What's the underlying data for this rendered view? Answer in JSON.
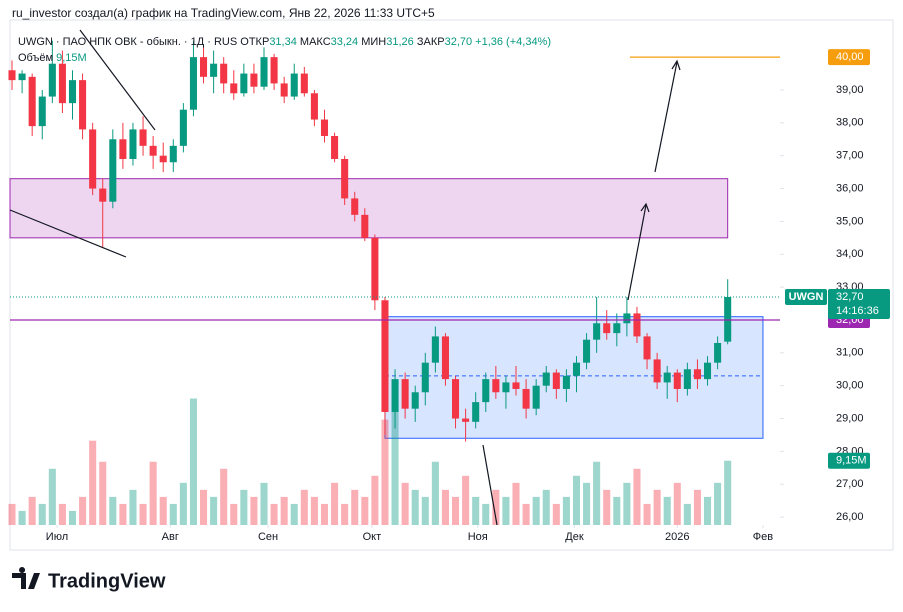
{
  "header": {
    "caption": "ru_investor создал(а) график на TradingView.com, Янв 22, 2026 11:33 UTC+5"
  },
  "legend": {
    "symbol": "UWGN · ПАО НПК ОВК - обыкн. · 1Д · RUS",
    "open_label": "ОТКР",
    "open": "31,34",
    "high_label": "МАКС",
    "high": "33,24",
    "low_label": "МИН",
    "low": "31,26",
    "close_label": "ЗАКР",
    "close": "32,70",
    "change": "+1,36 (+4,34%)",
    "volume_label": "Объём",
    "volume": "9,15M"
  },
  "footer": {
    "brand": "TradingView"
  },
  "chart_data": {
    "type": "candlestick",
    "name": "UWGN",
    "up_color": "#089981",
    "down_color": "#f23645",
    "ylim": [
      25.76,
      41.13
    ],
    "yticks": [
      {
        "value": 26,
        "label": "26,00"
      },
      {
        "value": 27,
        "label": "27,00"
      },
      {
        "value": 28,
        "label": "28,00"
      },
      {
        "value": 29,
        "label": "29,00"
      },
      {
        "value": 30,
        "label": "30,00"
      },
      {
        "value": 31,
        "label": "31,00"
      },
      {
        "value": 33,
        "label": "33,00"
      },
      {
        "value": 34,
        "label": "34,00"
      },
      {
        "value": 35,
        "label": "35,00"
      },
      {
        "value": 36,
        "label": "36,00"
      },
      {
        "value": 37,
        "label": "37,00"
      },
      {
        "value": 38,
        "label": "38,00"
      },
      {
        "value": 39,
        "label": "39,00"
      }
    ],
    "xlim": [
      -0.2,
      76.19
    ],
    "xticks": [
      {
        "value": 4.46,
        "label": "Июл"
      },
      {
        "value": 15.7,
        "label": "Авг"
      },
      {
        "value": 25.4,
        "label": "Сен"
      },
      {
        "value": 35.7,
        "label": "Окт"
      },
      {
        "value": 46.2,
        "label": "Ноя"
      },
      {
        "value": 55.8,
        "label": "Дек"
      },
      {
        "value": 66.0,
        "label": "2026"
      },
      {
        "value": 74.5,
        "label": "Фев"
      }
    ],
    "grid": false,
    "candles": [
      [
        39.6,
        39.9,
        39.0,
        39.3
      ],
      [
        39.3,
        39.6,
        38.9,
        39.5
      ],
      [
        39.4,
        39.5,
        37.6,
        37.9
      ],
      [
        37.9,
        39.0,
        37.5,
        38.8
      ],
      [
        38.8,
        40.5,
        38.6,
        39.8
      ],
      [
        39.8,
        40.2,
        38.3,
        38.6
      ],
      [
        38.6,
        39.6,
        38.1,
        39.3
      ],
      [
        39.3,
        39.5,
        37.5,
        37.8
      ],
      [
        37.8,
        38.0,
        35.8,
        36.0
      ],
      [
        36.0,
        36.3,
        34.2,
        35.6
      ],
      [
        35.6,
        37.8,
        35.4,
        37.5
      ],
      [
        37.5,
        38.0,
        36.6,
        36.9
      ],
      [
        36.9,
        38.0,
        36.7,
        37.8
      ],
      [
        37.8,
        38.2,
        37.0,
        37.3
      ],
      [
        37.3,
        37.6,
        36.6,
        37.0
      ],
      [
        37.0,
        37.4,
        36.5,
        36.8
      ],
      [
        36.8,
        37.5,
        36.5,
        37.3
      ],
      [
        37.3,
        38.6,
        37.1,
        38.4
      ],
      [
        38.4,
        40.5,
        38.2,
        40.0
      ],
      [
        40.0,
        40.3,
        39.2,
        39.4
      ],
      [
        39.4,
        40.2,
        38.9,
        39.8
      ],
      [
        39.8,
        40.0,
        38.9,
        39.2
      ],
      [
        39.2,
        39.6,
        38.7,
        38.9
      ],
      [
        38.9,
        39.8,
        38.8,
        39.5
      ],
      [
        39.5,
        39.8,
        38.9,
        39.1
      ],
      [
        39.1,
        40.3,
        39.0,
        40.0
      ],
      [
        40.0,
        40.1,
        39.0,
        39.2
      ],
      [
        39.2,
        39.4,
        38.6,
        38.8
      ],
      [
        38.8,
        39.8,
        38.7,
        39.5
      ],
      [
        39.5,
        39.7,
        38.8,
        38.9
      ],
      [
        38.9,
        39.0,
        37.9,
        38.1
      ],
      [
        38.1,
        38.4,
        37.4,
        37.6
      ],
      [
        37.6,
        37.7,
        36.8,
        36.9
      ],
      [
        36.9,
        37.0,
        35.5,
        35.7
      ],
      [
        35.7,
        35.9,
        35.0,
        35.2
      ],
      [
        35.2,
        35.4,
        34.4,
        34.5
      ],
      [
        34.5,
        34.6,
        32.3,
        32.6
      ],
      [
        32.6,
        32.7,
        28.5,
        29.2
      ],
      [
        29.2,
        30.5,
        28.7,
        30.2
      ],
      [
        30.2,
        30.4,
        29.0,
        29.3
      ],
      [
        29.3,
        30.0,
        28.9,
        29.8
      ],
      [
        29.8,
        31.0,
        29.4,
        30.7
      ],
      [
        30.7,
        31.8,
        30.4,
        31.5
      ],
      [
        31.5,
        31.6,
        30.0,
        30.2
      ],
      [
        30.2,
        30.3,
        28.7,
        29.0
      ],
      [
        29.0,
        29.3,
        28.3,
        28.9
      ],
      [
        28.9,
        29.8,
        28.7,
        29.5
      ],
      [
        29.5,
        30.4,
        29.2,
        30.2
      ],
      [
        30.2,
        30.6,
        29.6,
        29.8
      ],
      [
        29.8,
        30.3,
        29.3,
        30.1
      ],
      [
        30.1,
        30.6,
        29.7,
        29.9
      ],
      [
        29.9,
        30.2,
        29.0,
        29.3
      ],
      [
        29.3,
        30.2,
        29.1,
        30.0
      ],
      [
        30.0,
        30.6,
        29.8,
        30.4
      ],
      [
        30.4,
        30.5,
        29.6,
        29.9
      ],
      [
        29.9,
        30.5,
        29.5,
        30.3
      ],
      [
        30.3,
        30.9,
        29.8,
        30.7
      ],
      [
        30.7,
        31.6,
        30.5,
        31.4
      ],
      [
        31.4,
        32.7,
        31.0,
        31.9
      ],
      [
        31.9,
        32.3,
        31.4,
        31.6
      ],
      [
        31.6,
        32.2,
        31.2,
        31.9
      ],
      [
        31.9,
        32.7,
        31.5,
        32.2
      ],
      [
        32.2,
        32.4,
        31.3,
        31.5
      ],
      [
        31.5,
        31.6,
        30.5,
        30.8
      ],
      [
        30.8,
        31.0,
        29.9,
        30.1
      ],
      [
        30.1,
        30.6,
        29.6,
        30.4
      ],
      [
        30.4,
        30.5,
        29.5,
        29.9
      ],
      [
        29.9,
        30.7,
        29.7,
        30.5
      ],
      [
        30.5,
        30.8,
        29.9,
        30.2
      ],
      [
        30.2,
        30.9,
        30.0,
        30.7
      ],
      [
        30.7,
        31.5,
        30.5,
        31.3
      ],
      [
        31.34,
        33.24,
        31.26,
        32.7
      ]
    ],
    "volumes": [
      3,
      2,
      4,
      3,
      8,
      3,
      2,
      4,
      12,
      9,
      4,
      3,
      5,
      3,
      9,
      4,
      3,
      6,
      18,
      5,
      4,
      8,
      3,
      5,
      4,
      6,
      3,
      4,
      3,
      5,
      4,
      3,
      6,
      3,
      5,
      4,
      7,
      15,
      18,
      6,
      5,
      4,
      9,
      5,
      4,
      7,
      4,
      3,
      5,
      4,
      6,
      3,
      4,
      5,
      3,
      4,
      7,
      6,
      9,
      5,
      4,
      6,
      8,
      3,
      5,
      4,
      6,
      3,
      5,
      4,
      6,
      9.15
    ],
    "volume_ylim": [
      0,
      18.5
    ],
    "volume_label": "9,15M",
    "zones": [
      {
        "x0": -0.2,
        "x1": 71,
        "top": 36.3,
        "bottom": 34.5,
        "fill": "rgba(200,120,210,0.3)",
        "stroke": "#9c27b0"
      },
      {
        "x0": 37,
        "x1": 74.5,
        "top": 32.1,
        "bottom": 28.4,
        "fill": "rgba(100,150,250,0.25)",
        "stroke": "#2962ff",
        "mid": 30.3
      }
    ],
    "levels": [
      {
        "value": 40,
        "label": "40,00",
        "color": "#f59d0c",
        "x0": 61.3
      },
      {
        "value": 32,
        "label": "32,00",
        "color": "#9c27b0",
        "x0": -0.2
      }
    ],
    "last": {
      "value": 32.7,
      "label": "32,70",
      "timer": "14:16:36",
      "color": "#089981"
    }
  }
}
